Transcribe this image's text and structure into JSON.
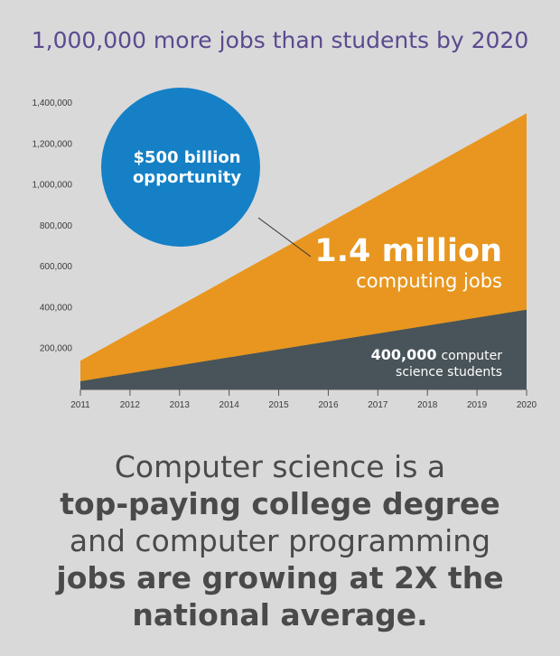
{
  "title": "1,000,000 more jobs than students by 2020",
  "chart_data": {
    "type": "area",
    "x": [
      2011,
      2012,
      2013,
      2014,
      2015,
      2016,
      2017,
      2018,
      2019,
      2020
    ],
    "x_tick_labels": [
      "2011",
      "2012",
      "2013",
      "2014",
      "2015",
      "2016",
      "2017",
      "2018",
      "2019",
      "2020"
    ],
    "y_tick_labels": [
      "200,000",
      "400,000",
      "600,000",
      "800,000",
      "1,000,000",
      "1,200,000",
      "1,400,000"
    ],
    "y_ticks": [
      200000,
      400000,
      600000,
      800000,
      1000000,
      1200000,
      1400000
    ],
    "ylim": [
      0,
      1400000
    ],
    "series": [
      {
        "name": "1.4 million computing jobs",
        "start": 140000,
        "end": 1350000,
        "color": "#e8961f"
      },
      {
        "name": "400,000 computer science students",
        "start": 40000,
        "end": 390000,
        "color": "#48545a"
      }
    ],
    "annotations": {
      "bubble_line1": "$500 billion",
      "bubble_line2": "opportunity",
      "jobs_big": "1.4 million",
      "jobs_small": "computing jobs",
      "students_num": "400,000",
      "students_word": "computer",
      "students_line2": "science students"
    },
    "bubble_color": "#1580c6"
  },
  "headline": {
    "l1": "Computer science is a",
    "l2": "top-paying college degree",
    "l3": "and computer programming",
    "l4": "jobs are growing at 2X the",
    "l5": "national average."
  }
}
